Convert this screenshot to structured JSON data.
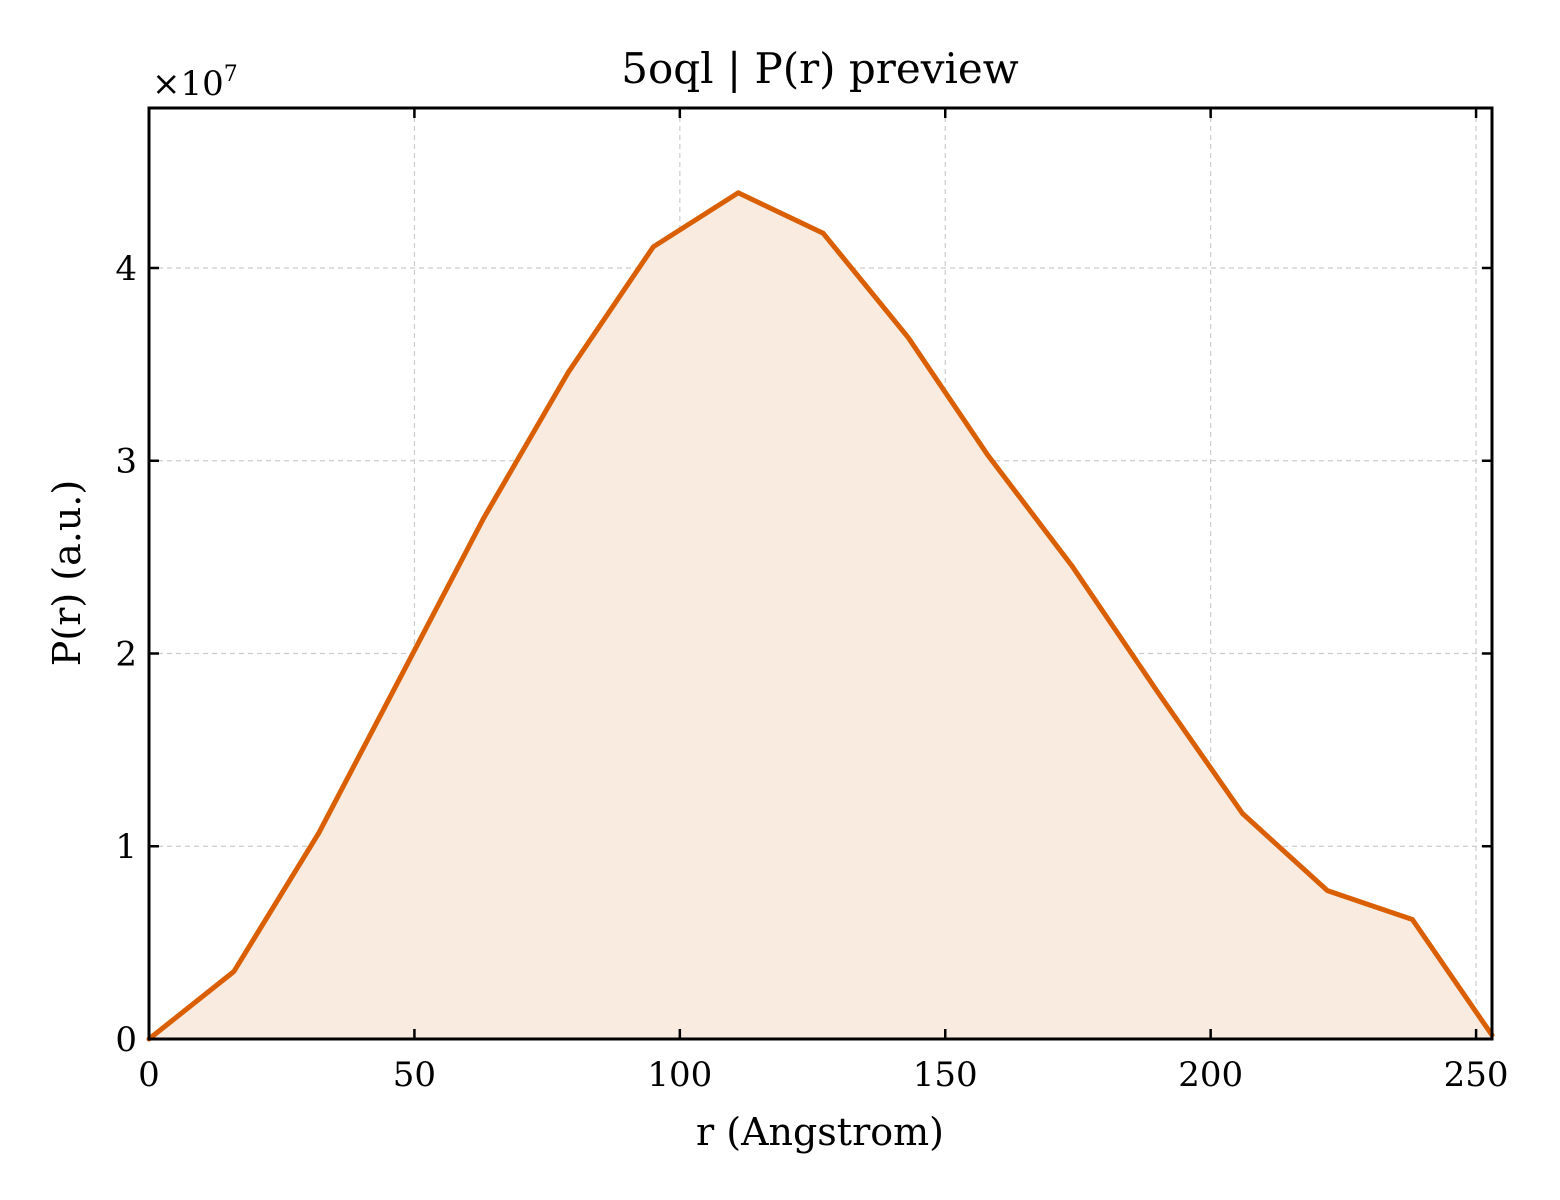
{
  "chart_data": {
    "type": "area",
    "title": "5oql | P(r) preview",
    "xlabel": "r (Angstrom)",
    "ylabel": "P(r) (a.u.)",
    "y_offset_label": "×10",
    "y_offset_exponent": "7",
    "xlim": [
      0,
      253
    ],
    "ylim": [
      0,
      4.83
    ],
    "x_ticks": [
      0,
      50,
      100,
      150,
      200,
      250
    ],
    "y_ticks": [
      0,
      1,
      2,
      3,
      4
    ],
    "grid": true,
    "legend": "none",
    "line_color": "#d95f02",
    "fill_color": "#f9ebe0",
    "series": [
      {
        "x": [
          0,
          16,
          32,
          48,
          63,
          79,
          95,
          111,
          127,
          143,
          158,
          174,
          190,
          206,
          222,
          238,
          253
        ],
        "y": [
          0,
          0.35,
          1.07,
          1.91,
          2.7,
          3.46,
          4.11,
          4.39,
          4.18,
          3.64,
          3.03,
          2.45,
          1.8,
          1.17,
          0.77,
          0.62,
          0.02
        ]
      }
    ]
  }
}
